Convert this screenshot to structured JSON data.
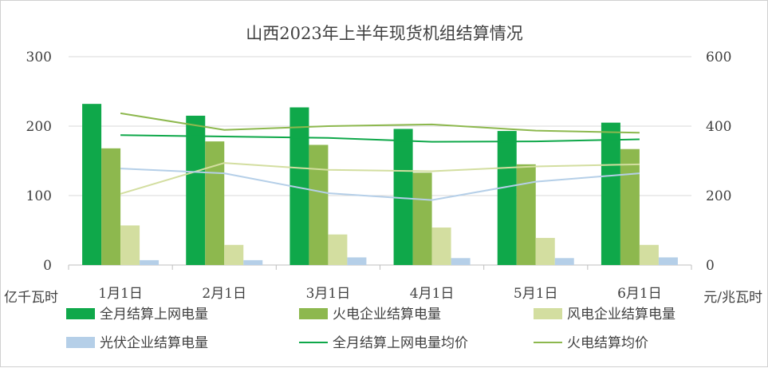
{
  "chart_data": {
    "type": "bar",
    "title": "山西2023年上半年现货机组结算情况",
    "categories": [
      "1月1日",
      "2月1日",
      "3月1日",
      "4月1日",
      "5月1日",
      "6月1日"
    ],
    "y_left": {
      "unit": "亿千瓦时",
      "ticks": [
        "0",
        "100",
        "200",
        "300"
      ],
      "ylim": [
        0,
        300
      ]
    },
    "y_right": {
      "unit": "元/兆瓦时",
      "ticks": [
        "0",
        "200",
        "400",
        "600"
      ],
      "ylim": [
        0,
        600
      ]
    },
    "grid": true,
    "legend_position": "bottom",
    "bar_series": [
      {
        "name": "全月结算上网电量",
        "color": "#0fa84a",
        "axis": "left",
        "values": [
          232,
          215,
          227,
          196,
          193,
          205
        ]
      },
      {
        "name": "火电企业结算电量",
        "color": "#8db84e",
        "axis": "left",
        "values": [
          168,
          178,
          173,
          133,
          145,
          167
        ]
      },
      {
        "name": "风电企业结算电量",
        "color": "#d3dea0",
        "axis": "left",
        "values": [
          57,
          29,
          44,
          54,
          39,
          29
        ]
      },
      {
        "name": "光伏企业结算电量",
        "color": "#b5cfe8",
        "axis": "left",
        "values": [
          7,
          7,
          11,
          10,
          10,
          11
        ]
      }
    ],
    "line_series": [
      {
        "name": "全月结算上网电量均价",
        "color": "#0fa84a",
        "axis": "right",
        "values": [
          374,
          370,
          366,
          355,
          356,
          362
        ]
      },
      {
        "name": "火电结算均价",
        "color": "#8db84e",
        "axis": "right",
        "values": [
          437,
          389,
          400,
          405,
          387,
          381
        ]
      },
      {
        "name": "风电结算均价",
        "color": "#d3dea0",
        "axis": "right",
        "values": [
          205,
          294,
          274,
          270,
          284,
          290
        ]
      },
      {
        "name": "光伏结算均价",
        "color": "#b5cfe8",
        "axis": "right",
        "values": [
          278,
          264,
          207,
          187,
          240,
          264
        ]
      }
    ],
    "legend": [
      "全月结算上网电量",
      "火电企业结算电量",
      "风电企业结算电量",
      "光伏企业结算电量",
      "全月结算上网电量均价",
      "火电结算均价"
    ]
  }
}
